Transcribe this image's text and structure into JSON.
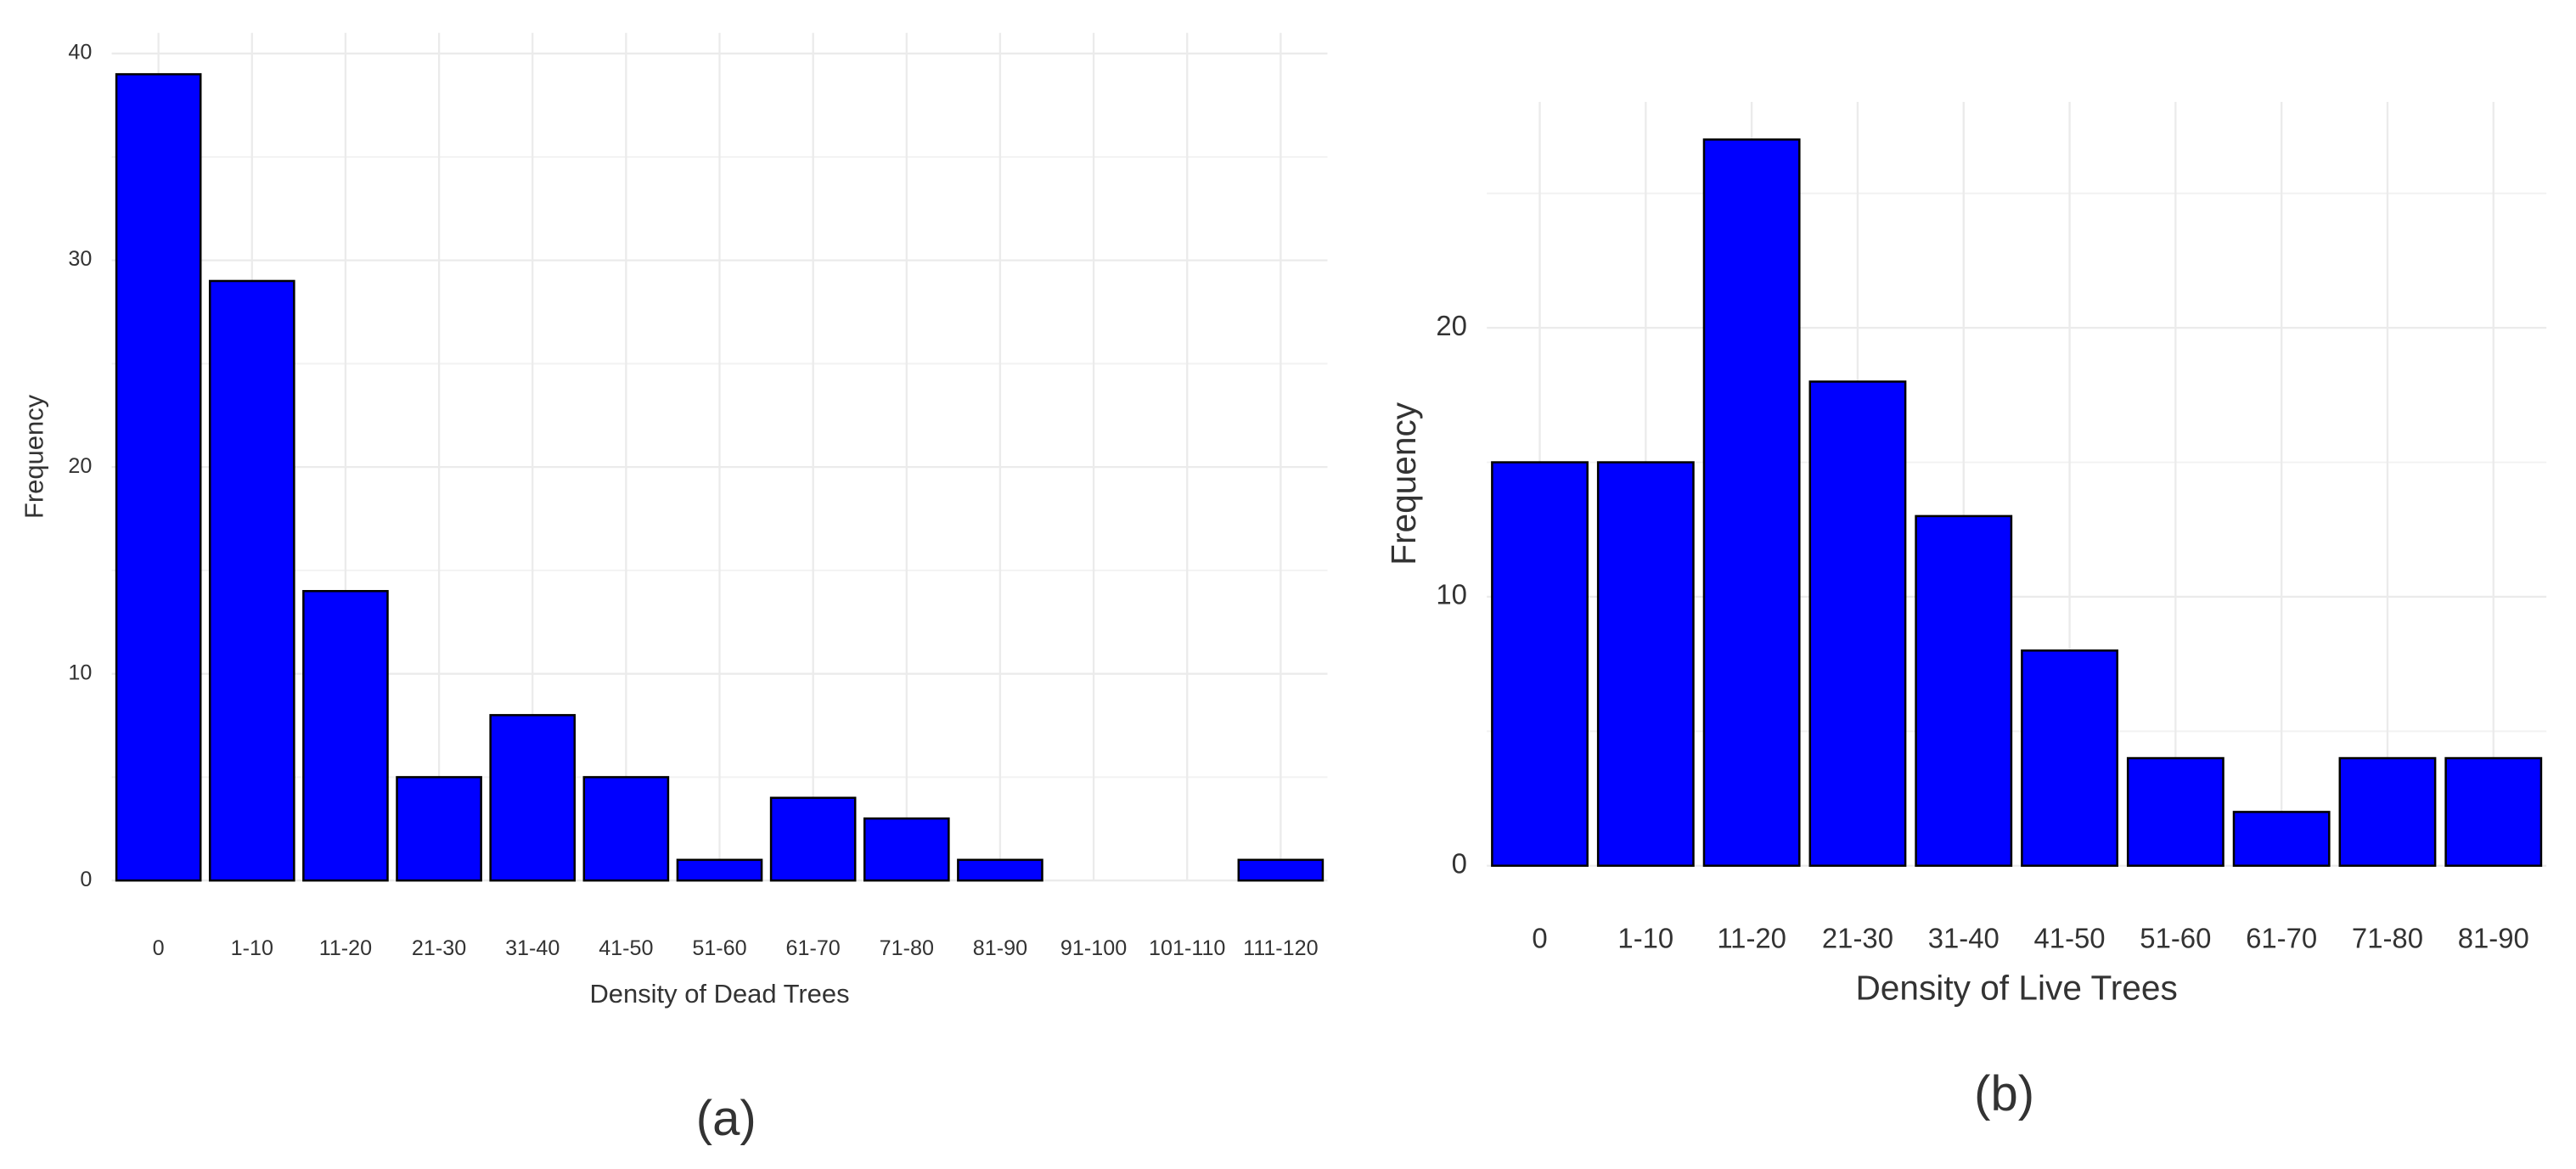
{
  "chart_data": [
    {
      "type": "bar",
      "caption": "(a)",
      "x_label": "Density of Dead Trees",
      "y_label": "Frequency",
      "categories": [
        "0",
        "1-10",
        "11-20",
        "21-30",
        "31-40",
        "41-50",
        "51-60",
        "61-70",
        "71-80",
        "81-90",
        "91-100",
        "101-110",
        "111-120"
      ],
      "values": [
        39,
        29,
        14,
        5,
        8,
        5,
        1,
        4,
        3,
        1,
        0,
        0,
        1
      ],
      "color": "#0000ff",
      "ylim": [
        0,
        41
      ],
      "yticks": [
        0,
        10,
        20,
        30,
        40
      ],
      "grid": true
    },
    {
      "type": "bar",
      "caption": "(b)",
      "x_label": "Density of Live Trees",
      "y_label": "Frequency",
      "categories": [
        "0",
        "1-10",
        "11-20",
        "21-30",
        "31-40",
        "41-50",
        "51-60",
        "61-70",
        "71-80",
        "81-90"
      ],
      "values": [
        15,
        15,
        27,
        18,
        13,
        8,
        4,
        2,
        4,
        4
      ],
      "color": "#0000ff",
      "ylim": [
        0,
        28.4
      ],
      "yticks": [
        0,
        10,
        20
      ],
      "grid": true
    }
  ]
}
